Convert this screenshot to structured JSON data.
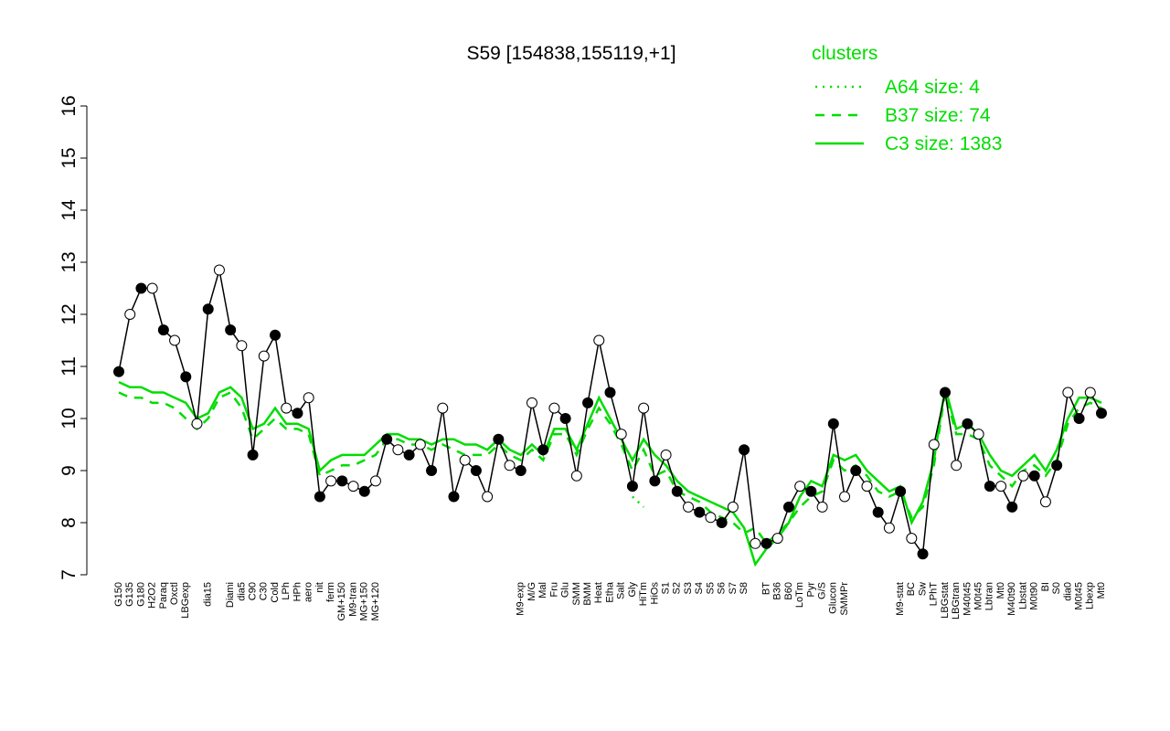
{
  "chart_data": {
    "type": "line",
    "title": "S59 [154838,155119,+1]",
    "legend_title": "clusters",
    "legend_color": "#00dd00",
    "ylim": [
      7,
      16
    ],
    "yticks": [
      7,
      8,
      9,
      10,
      11,
      12,
      13,
      14,
      15,
      16
    ],
    "categories": [
      "G150",
      "G135",
      "G180",
      "H2O2",
      "Paraq",
      "Oxctl",
      "LBGexp",
      null,
      "dia15",
      null,
      "Diami",
      "dia5",
      "C90",
      "C30",
      "Cold",
      "LPh",
      "HPh",
      "aero",
      "nit",
      "ferm",
      "GM+150",
      "M9-tran",
      "MG+150",
      "MG+120",
      null,
      null,
      null,
      null,
      null,
      null,
      null,
      null,
      null,
      null,
      null,
      null,
      "M9-exp",
      "M/G",
      "Mal",
      "Fru",
      "Glu",
      "SMM",
      "BMM",
      "Heat",
      "Etha",
      "Salt",
      "Gly",
      "HiTm",
      "HiOs",
      "S1",
      "S2",
      "S3",
      "S4",
      "S5",
      "S6",
      "S7",
      "S8",
      null,
      "BT",
      "B36",
      "B60",
      "LoTm",
      "Pyr",
      "G/S",
      "Glucon",
      "SMMPr",
      null,
      null,
      null,
      null,
      "M9-stat",
      "BC",
      "Sw",
      "LPhT",
      "LBGstat",
      "LBGtran",
      "M40t45",
      "M0t45",
      "Lbtran",
      "Mt0",
      "M40t90",
      "Lbstat",
      "M0t90",
      "BI",
      "S0",
      "dia0",
      "M0t45",
      "Lbexp",
      "Mt0"
    ],
    "values": [
      10.9,
      12.0,
      12.5,
      12.5,
      11.7,
      11.5,
      10.8,
      9.9,
      12.1,
      12.85,
      11.7,
      11.4,
      9.3,
      11.2,
      11.6,
      10.2,
      10.1,
      10.4,
      8.5,
      8.8,
      8.8,
      8.7,
      8.6,
      8.8,
      9.6,
      9.4,
      9.3,
      9.5,
      9.0,
      10.2,
      8.5,
      9.2,
      9.0,
      8.5,
      9.6,
      9.1,
      9.0,
      10.3,
      9.4,
      10.2,
      10.0,
      8.9,
      10.3,
      11.5,
      10.5,
      9.7,
      8.7,
      10.2,
      8.8,
      9.3,
      8.6,
      8.3,
      8.2,
      8.1,
      8.0,
      8.3,
      9.4,
      7.6,
      7.6,
      7.7,
      8.3,
      8.7,
      8.6,
      8.3,
      9.9,
      8.5,
      9.0,
      8.7,
      8.2,
      7.9,
      8.6,
      7.7,
      7.4,
      9.5,
      10.5,
      9.1,
      9.9,
      9.7,
      8.7,
      8.7,
      8.3,
      8.9,
      8.9,
      8.4,
      9.1,
      10.5,
      10.0,
      10.5,
      10.1
    ],
    "color": "#000000",
    "series": [
      {
        "name": "A64 size: 4",
        "color": "#00dd00",
        "dash": "dotted",
        "values": [
          null,
          null,
          null,
          null,
          null,
          null,
          null,
          null,
          null,
          null,
          null,
          null,
          null,
          null,
          null,
          null,
          null,
          null,
          null,
          null,
          null,
          null,
          null,
          null,
          null,
          null,
          null,
          null,
          null,
          null,
          null,
          null,
          null,
          null,
          null,
          null,
          null,
          null,
          null,
          null,
          null,
          null,
          null,
          null,
          null,
          null,
          8.5,
          8.3,
          null,
          null,
          null,
          null,
          null,
          null,
          null,
          null,
          null,
          null,
          null,
          null,
          null,
          null,
          null,
          null,
          null,
          null,
          null,
          null,
          null,
          null,
          null,
          null,
          null,
          null,
          null,
          null,
          null,
          null,
          null,
          null,
          null,
          null,
          null,
          null,
          null,
          null,
          null,
          null,
          null
        ]
      },
      {
        "name": "B37 size: 74",
        "color": "#00dd00",
        "dash": "dashed",
        "values": [
          10.5,
          10.4,
          10.4,
          10.3,
          10.3,
          10.2,
          10.0,
          9.8,
          10.0,
          10.4,
          10.5,
          10.2,
          9.6,
          9.8,
          10.0,
          9.8,
          9.8,
          9.7,
          8.9,
          9.0,
          9.1,
          9.1,
          9.2,
          9.3,
          9.6,
          9.6,
          9.5,
          9.5,
          9.4,
          9.5,
          9.4,
          9.3,
          9.3,
          9.3,
          9.5,
          9.3,
          9.2,
          9.4,
          9.2,
          9.7,
          9.7,
          9.3,
          9.8,
          10.2,
          9.9,
          9.5,
          9.0,
          9.4,
          8.9,
          9.0,
          8.6,
          8.5,
          8.4,
          8.2,
          8.1,
          8.0,
          7.8,
          7.9,
          7.6,
          7.8,
          8.0,
          8.3,
          8.5,
          8.6,
          9.2,
          9.0,
          9.1,
          8.9,
          8.6,
          8.5,
          8.6,
          8.1,
          8.3,
          9.1,
          10.5,
          9.7,
          9.7,
          9.6,
          9.1,
          8.9,
          8.7,
          9.0,
          9.1,
          8.9,
          9.2,
          9.9,
          10.2,
          10.3,
          10.2
        ]
      },
      {
        "name": "C3 size: 1383",
        "color": "#00dd00",
        "dash": "solid",
        "values": [
          10.7,
          10.6,
          10.6,
          10.5,
          10.5,
          10.4,
          10.3,
          10.0,
          10.1,
          10.5,
          10.6,
          10.4,
          9.8,
          9.9,
          10.2,
          9.9,
          9.9,
          9.8,
          9.0,
          9.2,
          9.3,
          9.3,
          9.3,
          9.5,
          9.7,
          9.7,
          9.6,
          9.6,
          9.5,
          9.6,
          9.6,
          9.5,
          9.5,
          9.4,
          9.6,
          9.4,
          9.3,
          9.5,
          9.3,
          9.8,
          9.8,
          9.4,
          9.9,
          10.4,
          10.0,
          9.6,
          9.2,
          9.6,
          9.3,
          9.1,
          8.8,
          8.6,
          8.5,
          8.4,
          8.3,
          8.2,
          7.9,
          7.2,
          7.5,
          7.7,
          8.0,
          8.5,
          8.8,
          8.7,
          9.3,
          9.2,
          9.3,
          9.0,
          8.8,
          8.6,
          8.7,
          8.0,
          8.4,
          9.2,
          10.6,
          9.8,
          9.9,
          9.7,
          9.3,
          9.0,
          8.9,
          9.1,
          9.3,
          9.0,
          9.4,
          10.0,
          10.4,
          10.4,
          10.3
        ]
      }
    ]
  }
}
